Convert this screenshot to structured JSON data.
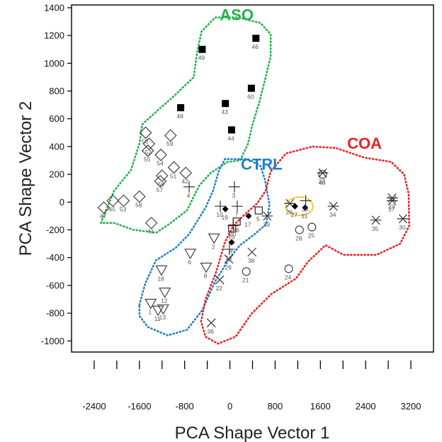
{
  "chart_data": {
    "type": "scatter",
    "xlabel": "PCA Shape Vector 1",
    "ylabel": "PCA Shape Vector 2",
    "xlim": [
      -2800,
      3600
    ],
    "ylim": [
      -1080,
      1420
    ],
    "x_ticks": [
      -2400,
      -1600,
      -800,
      0,
      800,
      1600,
      2400,
      3200
    ],
    "y_ticks": [
      -1000,
      -800,
      -600,
      -400,
      -200,
      0,
      200,
      400,
      600,
      800,
      1000,
      1200,
      1400
    ],
    "x_minor_ticks": [
      -2400,
      -2000,
      -1600,
      -1200,
      -800,
      -400,
      0,
      400,
      800,
      1200,
      1600,
      2000,
      2400,
      2800,
      3200
    ],
    "grid": false,
    "groups": [
      {
        "name": "ASO",
        "color": "#22b24c"
      },
      {
        "name": "CTRL",
        "color": "#1f7fd1"
      },
      {
        "name": "COA",
        "color": "#ee2222"
      }
    ],
    "highlight_color": "#f0c020",
    "points": [
      {
        "id": "1",
        "x": -1400,
        "y": -730,
        "marker": "triangle-down"
      },
      {
        "id": "2",
        "x": -280,
        "y": -260,
        "marker": "triangle-down"
      },
      {
        "id": "3",
        "x": 80,
        "y": 110,
        "marker": "plus"
      },
      {
        "id": "4",
        "x": -720,
        "y": 110,
        "marker": "plus"
      },
      {
        "id": "5",
        "x": 510,
        "y": -60,
        "marker": "square"
      },
      {
        "id": "6",
        "x": -700,
        "y": -370,
        "marker": "triangle-down"
      },
      {
        "id": "7",
        "x": 130,
        "y": -30,
        "marker": "plus"
      },
      {
        "id": "8",
        "x": -420,
        "y": -470,
        "marker": "triangle-down"
      },
      {
        "id": "9",
        "x": 30,
        "y": -290,
        "marker": "diamond-filled"
      },
      {
        "id": "10",
        "x": -170,
        "y": -30,
        "marker": "plus"
      },
      {
        "id": "11",
        "x": -1270,
        "y": -780,
        "marker": "triangle-down"
      },
      {
        "id": "12",
        "x": -1150,
        "y": -650,
        "marker": "triangle-down"
      },
      {
        "id": "13",
        "x": -1180,
        "y": -770,
        "marker": "triangle-down"
      },
      {
        "id": "14",
        "x": -10,
        "y": -340,
        "marker": "plus"
      },
      {
        "id": "15",
        "x": 40,
        "y": -190,
        "marker": "square"
      },
      {
        "id": "16",
        "x": 120,
        "y": -140,
        "marker": "square"
      },
      {
        "id": "17",
        "x": 330,
        "y": -100,
        "marker": "diamond-filled"
      },
      {
        "id": "18",
        "x": -1210,
        "y": -490,
        "marker": "triangle-down"
      },
      {
        "id": "19",
        "x": -80,
        "y": -50,
        "marker": "diamond-filled"
      },
      {
        "id": "20",
        "x": 60,
        "y": -170,
        "marker": "plus"
      },
      {
        "id": "21",
        "x": 290,
        "y": -500,
        "marker": "circle"
      },
      {
        "id": "22",
        "x": -180,
        "y": -560,
        "marker": "x"
      },
      {
        "id": "23",
        "x": 2870,
        "y": 30,
        "marker": "star"
      },
      {
        "id": "24",
        "x": 1040,
        "y": -480,
        "marker": "circle"
      },
      {
        "id": "25",
        "x": 1450,
        "y": -180,
        "marker": "circle"
      },
      {
        "id": "26",
        "x": 1060,
        "y": -10,
        "marker": "star"
      },
      {
        "id": "27",
        "x": 1150,
        "y": -30,
        "marker": "diamond-filled"
      },
      {
        "id": "28",
        "x": 1230,
        "y": -200,
        "marker": "circle"
      },
      {
        "id": "29",
        "x": -20,
        "y": -410,
        "marker": "x"
      },
      {
        "id": "30",
        "x": 3060,
        "y": -120,
        "marker": "star"
      },
      {
        "id": "31",
        "x": 1330,
        "y": -40,
        "marker": "diamond-filled"
      },
      {
        "id": "32",
        "x": 1640,
        "y": 210,
        "marker": "star"
      },
      {
        "id": "33",
        "x": 1340,
        "y": 10,
        "marker": "plus"
      },
      {
        "id": "34",
        "x": 1830,
        "y": -30,
        "marker": "star"
      },
      {
        "id": "35",
        "x": 2580,
        "y": -130,
        "marker": "star"
      },
      {
        "id": "36",
        "x": -330,
        "y": -870,
        "marker": "x"
      },
      {
        "id": "37",
        "x": 2870,
        "y": 10,
        "marker": "star"
      },
      {
        "id": "38",
        "x": 390,
        "y": -360,
        "marker": "x"
      },
      {
        "id": "39",
        "x": 660,
        "y": -100,
        "marker": "star"
      },
      {
        "id": "40",
        "x": 1640,
        "y": 200,
        "marker": "circle"
      },
      {
        "id": "41",
        "x": -1390,
        "y": -150,
        "marker": "diamond"
      },
      {
        "id": "42",
        "x": -780,
        "y": 210,
        "marker": "diamond"
      },
      {
        "id": "43",
        "x": -80,
        "y": 710,
        "marker": "square-filled"
      },
      {
        "id": "44",
        "x": 30,
        "y": 520,
        "marker": "square-filled"
      },
      {
        "id": "45",
        "x": -2070,
        "y": 10,
        "marker": "diamond"
      },
      {
        "id": "46",
        "x": 460,
        "y": 1180,
        "marker": "square-filled"
      },
      {
        "id": "47",
        "x": -2230,
        "y": -40,
        "marker": "diamond"
      },
      {
        "id": "48",
        "x": -870,
        "y": 680,
        "marker": "square-filled"
      },
      {
        "id": "49",
        "x": -490,
        "y": 1100,
        "marker": "square-filled"
      },
      {
        "id": "50",
        "x": -1490,
        "y": 500,
        "marker": "diamond"
      },
      {
        "id": "51",
        "x": -990,
        "y": 250,
        "marker": "diamond"
      },
      {
        "id": "52",
        "x": -1430,
        "y": 420,
        "marker": "diamond"
      },
      {
        "id": "53",
        "x": -1880,
        "y": 10,
        "marker": "diamond"
      },
      {
        "id": "54",
        "x": -1220,
        "y": 340,
        "marker": "diamond"
      },
      {
        "id": "55",
        "x": -1450,
        "y": 370,
        "marker": "diamond"
      },
      {
        "id": "56",
        "x": -1200,
        "y": 190,
        "marker": "diamond"
      },
      {
        "id": "57",
        "x": -1230,
        "y": 150,
        "marker": "diamond"
      },
      {
        "id": "58",
        "x": -1600,
        "y": 40,
        "marker": "diamond"
      },
      {
        "id": "59",
        "x": -1050,
        "y": 480,
        "marker": "diamond"
      },
      {
        "id": "60",
        "x": 380,
        "y": 820,
        "marker": "square-filled"
      }
    ]
  },
  "annotations": {
    "group_labels": [
      {
        "text": "ASO",
        "x": 120,
        "y": 1310,
        "color": "#22b24c"
      },
      {
        "text": "CTRL",
        "x": 560,
        "y": 235,
        "color": "#1f7fd1"
      },
      {
        "text": "COA",
        "x": 2380,
        "y": 385,
        "color": "#ee2222"
      }
    ]
  }
}
